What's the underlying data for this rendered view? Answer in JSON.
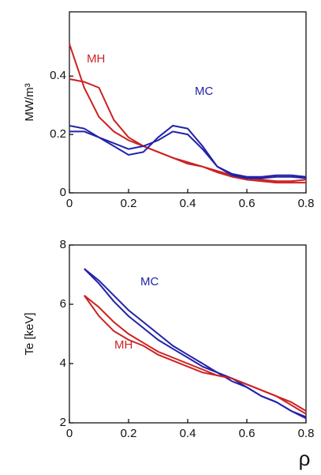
{
  "chart_data": [
    {
      "type": "line",
      "ylabel": "MW/m³",
      "x": [
        0,
        0.05,
        0.1,
        0.15,
        0.2,
        0.25,
        0.3,
        0.35,
        0.4,
        0.45,
        0.5,
        0.55,
        0.6,
        0.65,
        0.7,
        0.75,
        0.8
      ],
      "xlim": [
        0,
        0.8
      ],
      "xticks": [
        0,
        0.2,
        0.4,
        0.6,
        0.8
      ],
      "ylim": [
        0,
        0.62
      ],
      "yticks": [
        0,
        0.2,
        0.4
      ],
      "annotations": [
        "MH",
        "MC"
      ],
      "series": [
        {
          "color": "#cc2222",
          "values": [
            0.51,
            0.36,
            0.26,
            0.21,
            0.18,
            0.16,
            0.14,
            0.12,
            0.1,
            0.09,
            0.07,
            0.055,
            0.045,
            0.04,
            0.035,
            0.035,
            0.035
          ]
        },
        {
          "color": "#cc2222",
          "values": [
            0.39,
            0.38,
            0.36,
            0.25,
            0.19,
            0.16,
            0.14,
            0.12,
            0.105,
            0.09,
            0.075,
            0.06,
            0.05,
            0.045,
            0.04,
            0.04,
            0.045
          ]
        },
        {
          "color": "#2222aa",
          "values": [
            0.23,
            0.22,
            0.19,
            0.16,
            0.13,
            0.14,
            0.19,
            0.23,
            0.22,
            0.16,
            0.09,
            0.06,
            0.05,
            0.05,
            0.055,
            0.055,
            0.05
          ]
        },
        {
          "color": "#2222aa",
          "values": [
            0.21,
            0.21,
            0.19,
            0.17,
            0.15,
            0.16,
            0.18,
            0.21,
            0.2,
            0.15,
            0.09,
            0.065,
            0.055,
            0.055,
            0.06,
            0.06,
            0.055
          ]
        }
      ]
    },
    {
      "type": "line",
      "ylabel": "Te [keV]",
      "xlabel": "ρ",
      "x": [
        0.05,
        0.1,
        0.15,
        0.2,
        0.25,
        0.3,
        0.35,
        0.4,
        0.45,
        0.5,
        0.55,
        0.6,
        0.65,
        0.7,
        0.75,
        0.8
      ],
      "xlim": [
        0,
        0.8
      ],
      "xticks": [
        0,
        0.2,
        0.4,
        0.6,
        0.8
      ],
      "ylim": [
        2,
        8
      ],
      "yticks": [
        2,
        4,
        6,
        8
      ],
      "annotations": [
        "MC",
        "MH"
      ],
      "series": [
        {
          "color": "#2222aa",
          "values": [
            7.2,
            6.8,
            6.3,
            5.8,
            5.4,
            5.0,
            4.6,
            4.3,
            4.0,
            3.7,
            3.5,
            3.2,
            2.9,
            2.7,
            2.4,
            2.2
          ]
        },
        {
          "color": "#2222aa",
          "values": [
            7.2,
            6.7,
            6.1,
            5.6,
            5.2,
            4.8,
            4.5,
            4.2,
            3.9,
            3.7,
            3.4,
            3.2,
            2.9,
            2.7,
            2.4,
            2.15
          ]
        },
        {
          "color": "#cc2222",
          "values": [
            6.3,
            5.6,
            5.1,
            4.8,
            4.6,
            4.3,
            4.1,
            3.9,
            3.7,
            3.6,
            3.5,
            3.3,
            3.1,
            2.9,
            2.7,
            2.4
          ]
        },
        {
          "color": "#cc2222",
          "values": [
            6.3,
            5.9,
            5.4,
            5.0,
            4.7,
            4.4,
            4.2,
            4.0,
            3.8,
            3.6,
            3.5,
            3.3,
            3.1,
            2.9,
            2.6,
            2.3
          ]
        }
      ]
    }
  ]
}
